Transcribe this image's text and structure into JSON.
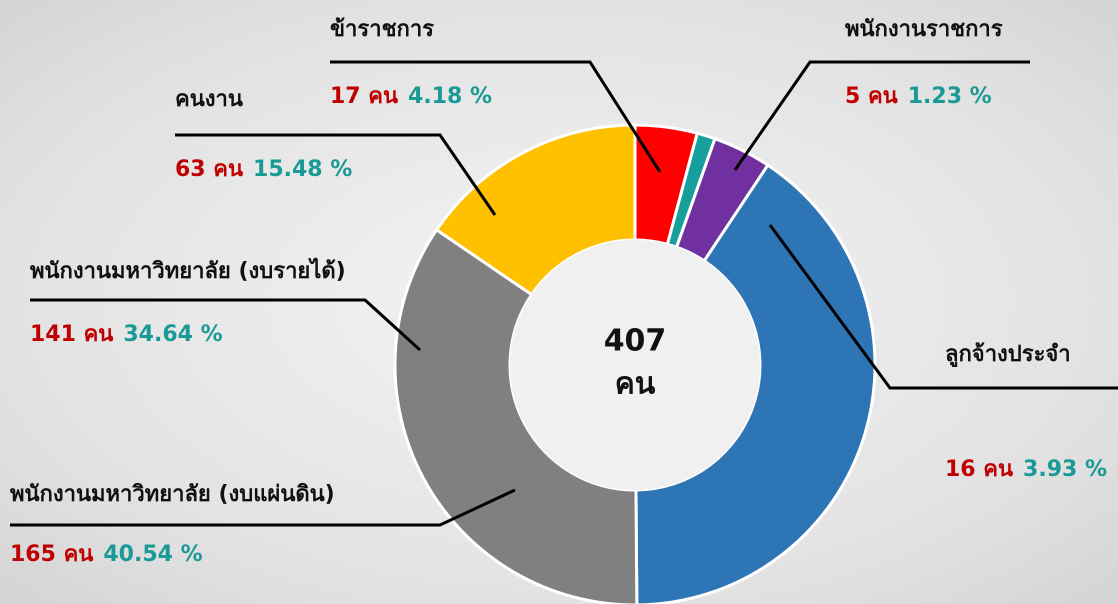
{
  "chart_data": {
    "type": "donut",
    "categories": [
      "ข้าราชการ",
      "พนักงานราชการ",
      "ลูกจ้างประจำ",
      "พนักงานมหาวิทยาลัย (งบแผ่นดิน)",
      "พนักงานมหาวิทยาลัย (งบรายได้)",
      "คนงาน"
    ],
    "values": [
      17,
      5,
      16,
      165,
      141,
      63
    ],
    "value_labels": [
      "17 คน",
      "5 คน",
      "16 คน",
      "165 คน",
      "141 คน",
      "63 คน"
    ],
    "percents": [
      4.18,
      1.23,
      3.93,
      40.54,
      34.64,
      15.48
    ],
    "percent_labels": [
      "4.18 %",
      "1.23 %",
      "3.93 %",
      "40.54 %",
      "34.64 %",
      "15.48 %"
    ],
    "colors": [
      "#ff0000",
      "#17a09b",
      "#7030a0",
      "#2e75b6",
      "#808080",
      "#ffc000"
    ],
    "total": 407,
    "total_unit": "คน"
  }
}
